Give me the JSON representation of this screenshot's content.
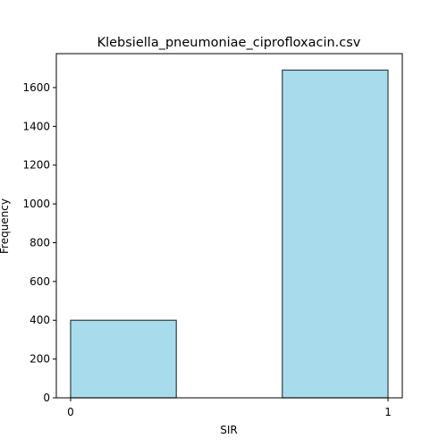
{
  "chart_data": {
    "type": "bar",
    "title": "Klebsiella_pneumoniae_ciprofloxacin.csv",
    "xlabel": "SIR",
    "ylabel": "Frequency",
    "x_ticks": [
      "0",
      "1"
    ],
    "y_ticks": [
      0,
      200,
      400,
      600,
      800,
      1000,
      1200,
      1400,
      1600
    ],
    "ylim": [
      0,
      1775
    ],
    "xlim": [
      -0.045,
      1.045
    ],
    "bars": [
      {
        "x_start": 0.0,
        "x_end": 0.333,
        "value": 400
      },
      {
        "x_start": 0.667,
        "x_end": 1.0,
        "value": 1690
      }
    ],
    "bar_color": "#a8dced",
    "bar_edge_color": "#2f3f44",
    "grid": false,
    "legend": "none"
  }
}
